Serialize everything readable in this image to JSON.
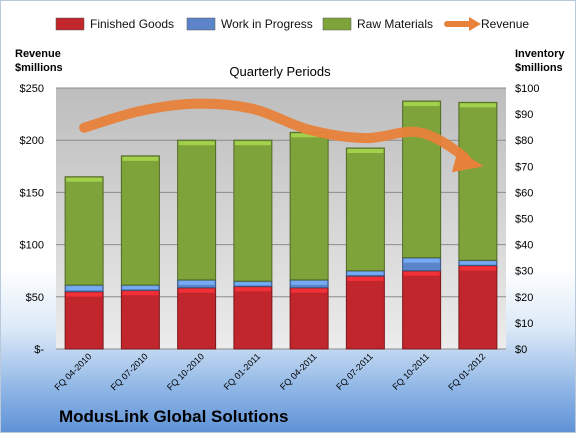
{
  "chart_data": {
    "type": "bar",
    "stacked": true,
    "title": "Quarterly Periods",
    "footer": "ModusLink Global Solutions",
    "ylabel_left": [
      "Revenue",
      "$millions"
    ],
    "ylabel_right": [
      "Inventory",
      "$millions"
    ],
    "categories": [
      "FQ 04-2010",
      "FQ 07-2010",
      "FQ 10-2010",
      "FQ 01-2011",
      "FQ 04-2011",
      "FQ 07-2011",
      "FQ 10-2011",
      "FQ 01-2012"
    ],
    "left_axis": {
      "ylim": [
        0,
        250
      ],
      "ticks": [
        "$-",
        "$50",
        "$100",
        "$150",
        "$200",
        "$250"
      ]
    },
    "right_axis": {
      "ylim": [
        0,
        100
      ],
      "ticks": [
        "$0",
        "$10",
        "$20",
        "$30",
        "$40",
        "$50",
        "$60",
        "$70",
        "$80",
        "$90",
        "$100"
      ]
    },
    "series": [
      {
        "name": "Finished Goods",
        "axis": "right",
        "color": "#c0262c",
        "values": [
          22,
          22.5,
          23.5,
          24,
          23.5,
          28,
          30,
          32
        ]
      },
      {
        "name": "Work in Progress",
        "axis": "right",
        "color": "#5b85c8",
        "values": [
          2.5,
          2,
          3,
          2,
          3,
          2,
          5,
          2
        ]
      },
      {
        "name": "Raw Materials",
        "axis": "right",
        "color": "#7fa33b",
        "values": [
          41.5,
          49.5,
          53.5,
          54,
          56.5,
          47,
          60,
          60.5
        ]
      },
      {
        "name": "Revenue",
        "axis": "left",
        "type": "line",
        "color": "#e8823a",
        "values": [
          212,
          228,
          235,
          230,
          210,
          202,
          207,
          177
        ]
      }
    ],
    "grid": true,
    "legend": "top"
  }
}
